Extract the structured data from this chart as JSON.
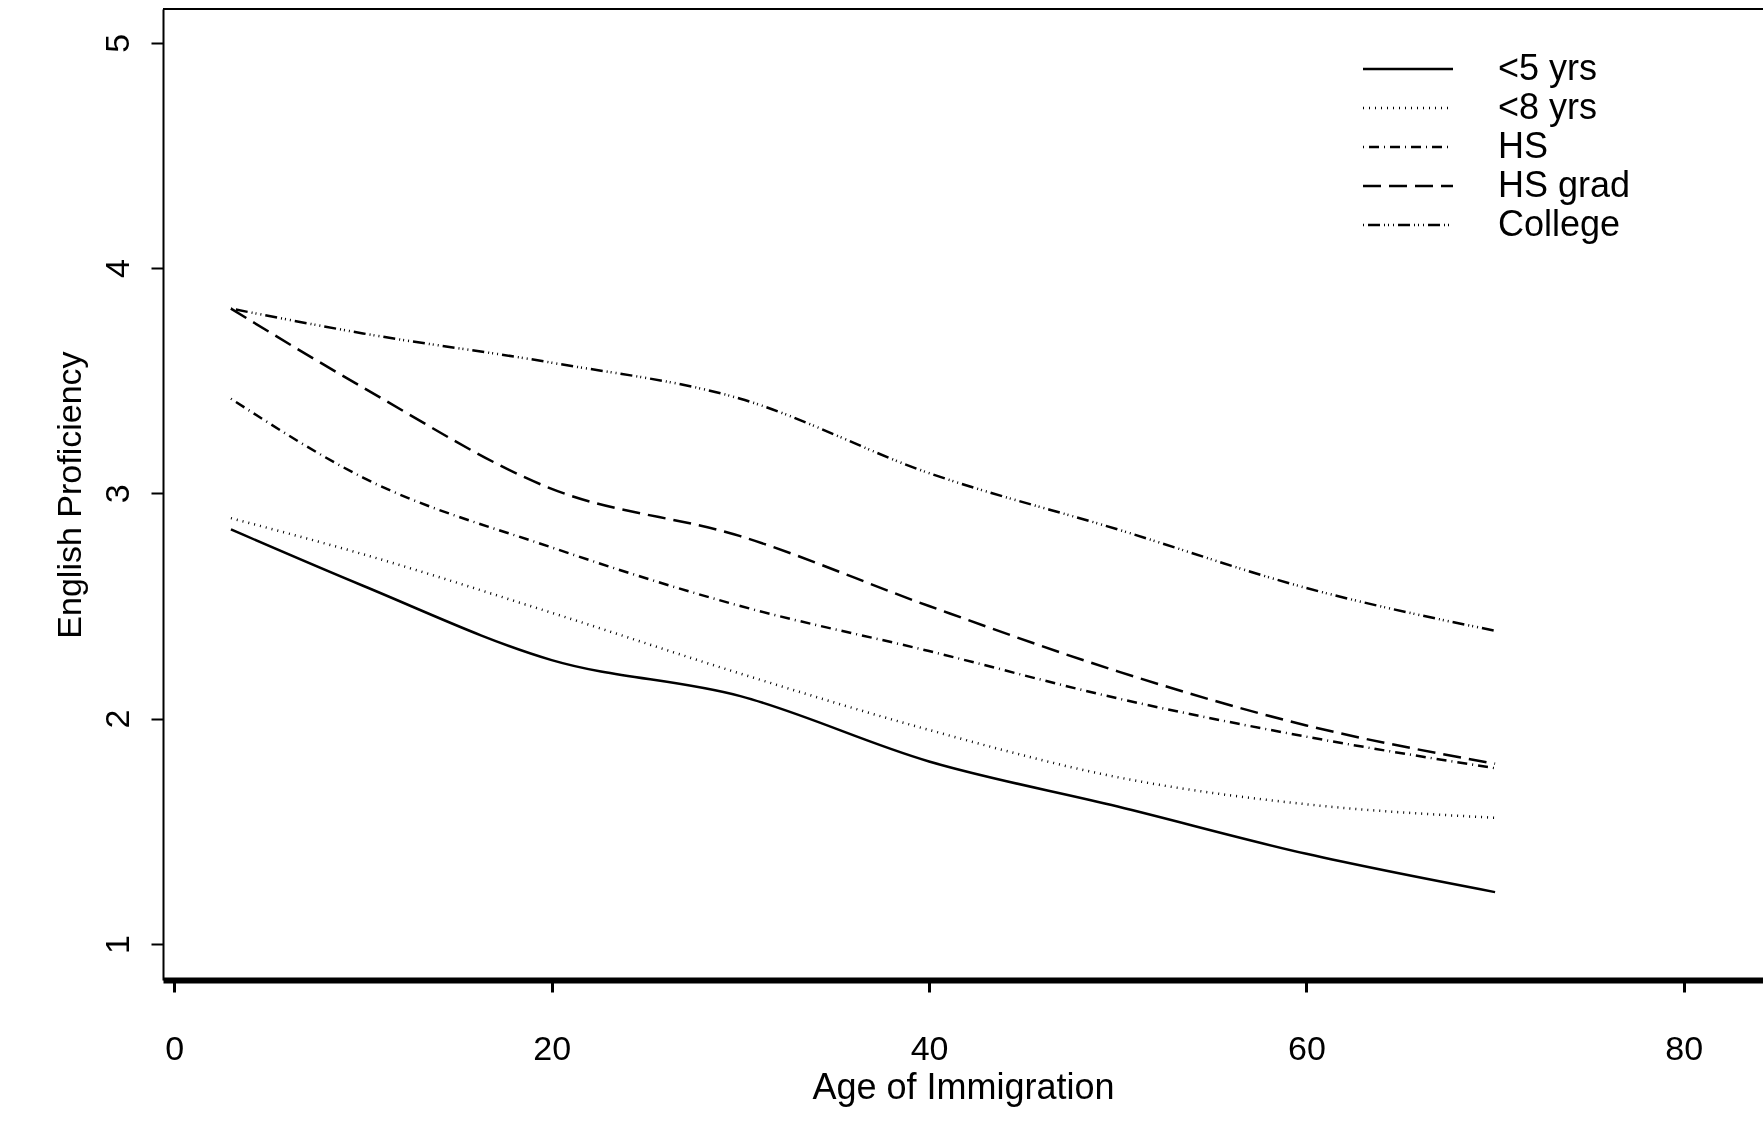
{
  "chart_data": {
    "type": "line",
    "xlabel": "Age of Immigration",
    "ylabel": "English Proficiency",
    "xlim": [
      -0.6,
      84.2
    ],
    "ylim": [
      0.84,
      5.15
    ],
    "xticks": [
      0,
      20,
      40,
      60,
      80
    ],
    "yticks": [
      1,
      2,
      3,
      4,
      5
    ],
    "grid": false,
    "legend": "top right",
    "marker": "none",
    "x": [
      3,
      10,
      20,
      30,
      40,
      50,
      60,
      70
    ],
    "series": [
      {
        "name": "<5 yrs",
        "color": "#000000",
        "line_style": "solid",
        "values": [
          2.84,
          2.59,
          2.26,
          2.1,
          1.81,
          1.61,
          1.4,
          1.23
        ]
      },
      {
        "name": "<8 yrs",
        "color": "#000000",
        "line_style": "dotted",
        "values": [
          2.89,
          2.73,
          2.47,
          2.2,
          1.95,
          1.74,
          1.62,
          1.56
        ]
      },
      {
        "name": "HS",
        "color": "#000000",
        "line_style": "dashdot",
        "values": [
          3.42,
          3.07,
          2.76,
          2.5,
          2.3,
          2.09,
          1.92,
          1.78
        ]
      },
      {
        "name": "HS grad",
        "color": "#000000",
        "line_style": "dashed",
        "values": [
          3.82,
          3.47,
          3.02,
          2.81,
          2.5,
          2.21,
          1.97,
          1.8
        ]
      },
      {
        "name": "College",
        "color": "#000000",
        "line_style": "longdashdot",
        "values": [
          3.82,
          3.71,
          3.58,
          3.42,
          3.09,
          2.84,
          2.58,
          2.39
        ]
      }
    ]
  }
}
